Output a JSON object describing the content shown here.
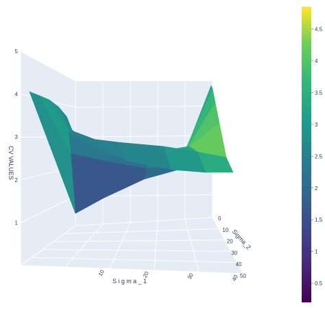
{
  "chart_data": {
    "type": "surface",
    "x_label": "Sigma_1",
    "y_label": "Sigma_2",
    "z_label": "CV VALUES",
    "x_ticks": [
      "10",
      "20",
      "30",
      "40"
    ],
    "y_ticks": [
      "0",
      "10",
      "20",
      "30",
      "40",
      "50"
    ],
    "z_ticks": [
      "1",
      "2",
      "3",
      "4",
      "5"
    ],
    "z_range": [
      0,
      5
    ],
    "colorscale": "Viridis",
    "colorbar_ticks": [
      "0.5",
      "1",
      "1.5",
      "2",
      "2.5",
      "3",
      "3.5",
      "4",
      "4.5"
    ],
    "colorbar_range": [
      0.2,
      4.85
    ],
    "surface_estimate": {
      "sigma_1": [
        0,
        10,
        20,
        30,
        40,
        50
      ],
      "sigma_2": [
        0,
        10,
        20,
        30,
        40,
        50
      ],
      "z": [
        [
          4.1,
          1.0,
          1.3,
          1.5,
          1.9,
          4.3
        ],
        [
          3.8,
          2.4,
          1.8,
          2.0,
          2.6,
          4.4
        ],
        [
          3.4,
          2.7,
          2.2,
          2.5,
          3.2,
          4.5
        ],
        [
          3.0,
          2.6,
          2.4,
          2.8,
          3.6,
          4.6
        ],
        [
          2.6,
          2.5,
          2.5,
          2.9,
          3.8,
          4.7
        ],
        [
          2.3,
          2.4,
          2.5,
          2.6,
          2.6,
          2.6
        ]
      ]
    },
    "grid": true
  }
}
